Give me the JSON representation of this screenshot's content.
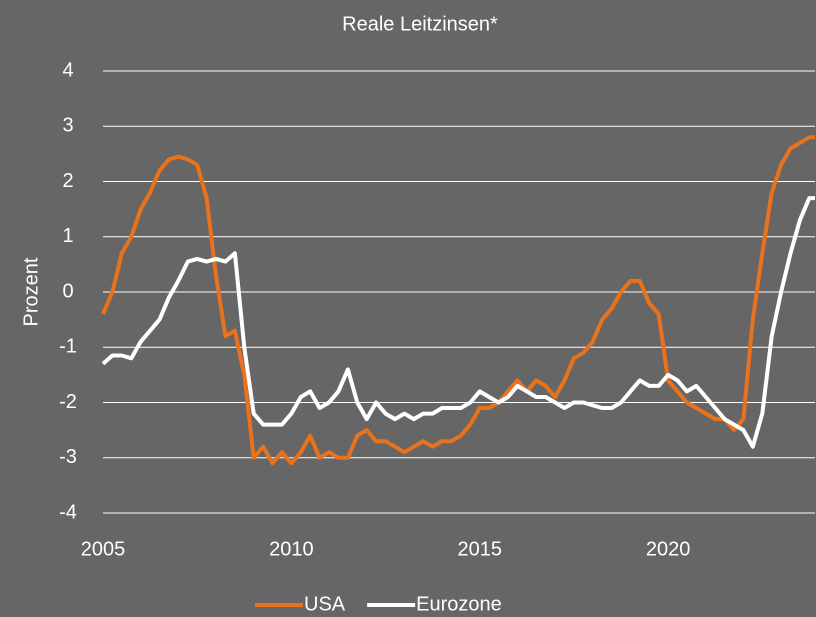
{
  "chart_data": {
    "type": "line",
    "title": "Reale Leitzinsen*",
    "y_label": "Prozent",
    "x": [
      2005,
      2005.25,
      2005.5,
      2005.75,
      2006,
      2006.25,
      2006.5,
      2006.75,
      2007,
      2007.25,
      2007.5,
      2007.75,
      2008,
      2008.25,
      2008.5,
      2008.75,
      2009,
      2009.25,
      2009.5,
      2009.75,
      2010,
      2010.25,
      2010.5,
      2010.75,
      2011,
      2011.25,
      2011.5,
      2011.75,
      2012,
      2012.25,
      2012.5,
      2012.75,
      2013,
      2013.25,
      2013.5,
      2013.75,
      2014,
      2014.25,
      2014.5,
      2014.75,
      2015,
      2015.25,
      2015.5,
      2015.75,
      2016,
      2016.25,
      2016.5,
      2016.75,
      2017,
      2017.25,
      2017.5,
      2017.75,
      2018,
      2018.25,
      2018.5,
      2018.75,
      2019,
      2019.25,
      2019.5,
      2019.75,
      2020,
      2020.25,
      2020.5,
      2020.75,
      2021,
      2021.25,
      2021.5,
      2021.75,
      2022,
      2022.25,
      2022.5,
      2022.75,
      2023,
      2023.25,
      2023.5,
      2023.75,
      2023.9
    ],
    "series": [
      {
        "name": "USA",
        "color": "#e8731c",
        "values": [
          -0.4,
          0.0,
          0.7,
          1.0,
          1.5,
          1.8,
          2.2,
          2.4,
          2.45,
          2.4,
          2.3,
          1.7,
          0.3,
          -0.8,
          -0.7,
          -1.5,
          -3.0,
          -2.8,
          -3.1,
          -2.9,
          -3.1,
          -2.9,
          -2.6,
          -3.0,
          -2.9,
          -3.0,
          -3.0,
          -2.6,
          -2.5,
          -2.7,
          -2.7,
          -2.8,
          -2.9,
          -2.8,
          -2.7,
          -2.8,
          -2.7,
          -2.7,
          -2.6,
          -2.4,
          -2.1,
          -2.1,
          -2.0,
          -1.8,
          -1.6,
          -1.8,
          -1.6,
          -1.7,
          -1.9,
          -1.6,
          -1.2,
          -1.1,
          -0.9,
          -0.5,
          -0.3,
          0.0,
          0.2,
          0.2,
          -0.2,
          -0.4,
          -1.6,
          -1.8,
          -2.0,
          -2.1,
          -2.2,
          -2.3,
          -2.3,
          -2.5,
          -2.3,
          -0.5,
          0.7,
          1.8,
          2.3,
          2.6,
          2.7,
          2.8,
          2.8
        ]
      },
      {
        "name": "Eurozone",
        "color": "#ffffff",
        "values": [
          -1.3,
          -1.15,
          -1.15,
          -1.2,
          -0.9,
          -0.7,
          -0.5,
          -0.1,
          0.2,
          0.55,
          0.6,
          0.55,
          0.6,
          0.55,
          0.7,
          -1.0,
          -2.2,
          -2.4,
          -2.4,
          -2.4,
          -2.2,
          -1.9,
          -1.8,
          -2.1,
          -2.0,
          -1.8,
          -1.4,
          -2.0,
          -2.3,
          -2.0,
          -2.2,
          -2.3,
          -2.2,
          -2.3,
          -2.2,
          -2.2,
          -2.1,
          -2.1,
          -2.1,
          -2.0,
          -1.8,
          -1.9,
          -2.0,
          -1.9,
          -1.7,
          -1.8,
          -1.9,
          -1.9,
          -2.0,
          -2.1,
          -2.0,
          -2.0,
          -2.05,
          -2.1,
          -2.1,
          -2.0,
          -1.8,
          -1.6,
          -1.7,
          -1.7,
          -1.5,
          -1.6,
          -1.8,
          -1.7,
          -1.9,
          -2.1,
          -2.3,
          -2.4,
          -2.5,
          -2.8,
          -2.2,
          -0.8,
          0.0,
          0.7,
          1.3,
          1.7,
          1.7
        ]
      }
    ],
    "xlim": [
      2005,
      2023.9
    ],
    "xticks": [
      2005,
      2010,
      2015,
      2020
    ],
    "ylim": [
      -4,
      4
    ],
    "yticks": [
      -4,
      -3,
      -2,
      -1,
      0,
      1,
      2,
      3,
      4
    ],
    "grid": true,
    "legend": "bottom"
  }
}
